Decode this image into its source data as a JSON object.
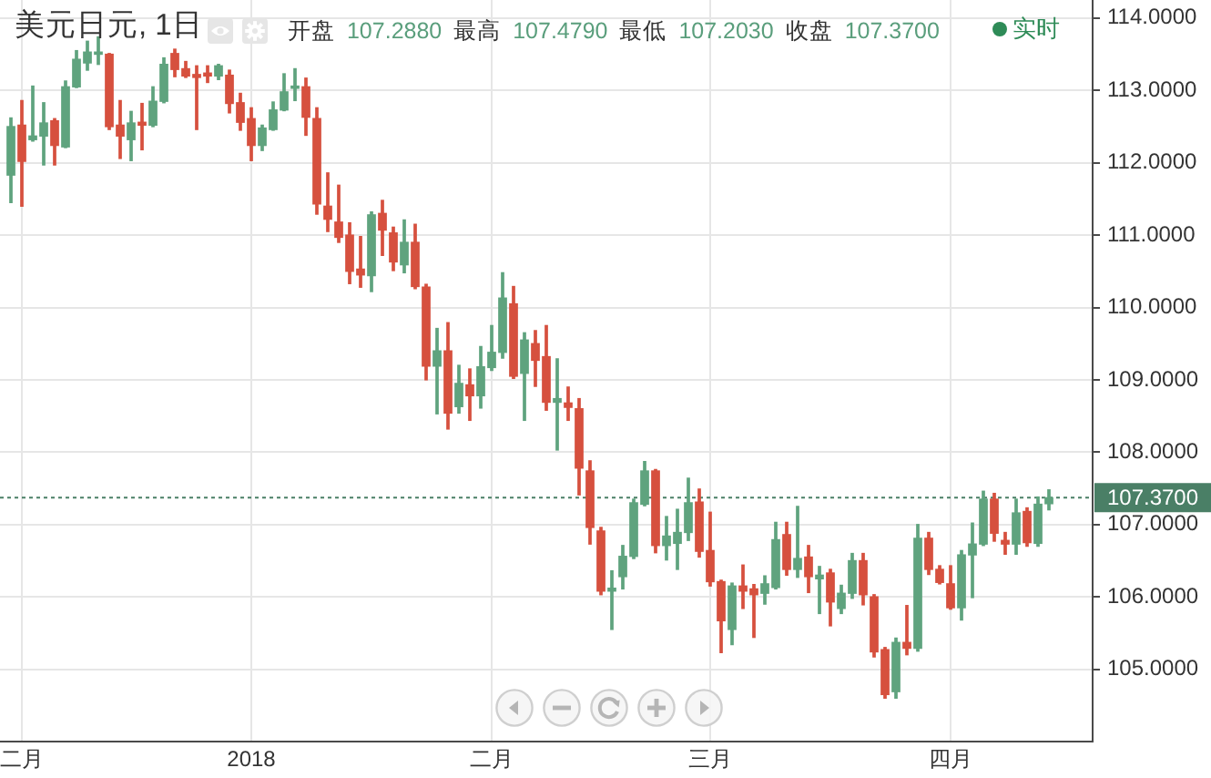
{
  "chart_data": {
    "type": "candlestick",
    "title": "美元日元, 1日",
    "subtitle": "开盘 107.2880 最高 107.4790 最低 107.2030 收盘 107.3700",
    "annotations": [
      "实时"
    ],
    "categories": [
      null,
      "二月",
      null,
      null,
      null,
      null,
      null,
      null,
      null,
      null,
      null,
      null,
      null,
      null,
      null,
      null,
      null,
      null,
      null,
      null,
      null,
      null,
      "2018",
      null,
      null,
      null,
      null,
      null,
      null,
      null,
      null,
      null,
      null,
      null,
      null,
      null,
      null,
      null,
      null,
      null,
      null,
      null,
      null,
      null,
      "二月",
      null,
      null,
      null,
      null,
      null,
      null,
      null,
      null,
      null,
      null,
      null,
      null,
      null,
      null,
      null,
      null,
      null,
      null,
      null,
      "三月",
      null,
      null,
      null,
      null,
      null,
      null,
      null,
      null,
      null,
      null,
      null,
      null,
      null,
      null,
      null,
      null,
      null,
      null,
      null,
      null,
      null,
      "四月",
      null,
      null,
      null,
      null,
      null,
      null,
      null,
      null,
      null
    ],
    "ohlc": [
      [
        111.83,
        112.62,
        111.45,
        112.5
      ],
      [
        112.52,
        112.86,
        111.4,
        112.02
      ],
      [
        112.32,
        113.06,
        112.3,
        112.37
      ],
      [
        112.37,
        112.83,
        111.97,
        112.55
      ],
      [
        112.58,
        112.61,
        111.97,
        112.24
      ],
      [
        112.22,
        113.13,
        112.21,
        113.05
      ],
      [
        113.05,
        113.55,
        113.04,
        113.43
      ],
      [
        113.38,
        113.68,
        113.28,
        113.53
      ],
      [
        113.5,
        113.74,
        113.36,
        113.53
      ],
      [
        113.5,
        113.51,
        112.46,
        112.5
      ],
      [
        112.52,
        112.86,
        112.06,
        112.37
      ],
      [
        112.32,
        112.71,
        112.03,
        112.55
      ],
      [
        112.56,
        112.82,
        112.18,
        112.52
      ],
      [
        112.52,
        113.05,
        112.5,
        112.85
      ],
      [
        112.85,
        113.45,
        112.83,
        113.36
      ],
      [
        113.51,
        113.57,
        113.19,
        113.29
      ],
      [
        113.3,
        113.4,
        113.18,
        113.2
      ],
      [
        113.22,
        113.34,
        112.46,
        113.18
      ],
      [
        113.24,
        113.34,
        113.11,
        113.2
      ],
      [
        113.2,
        113.36,
        113.15,
        113.34
      ],
      [
        113.21,
        113.28,
        112.69,
        112.82
      ],
      [
        112.83,
        112.96,
        112.45,
        112.56
      ],
      [
        112.61,
        112.76,
        112.03,
        112.24
      ],
      [
        112.24,
        112.52,
        112.17,
        112.48
      ],
      [
        112.46,
        112.84,
        112.45,
        112.73
      ],
      [
        112.73,
        113.23,
        112.72,
        112.98
      ],
      [
        113.03,
        113.3,
        112.86,
        113.06
      ],
      [
        113.05,
        113.17,
        112.38,
        112.63
      ],
      [
        112.61,
        112.76,
        111.29,
        111.43
      ],
      [
        111.4,
        111.86,
        111.05,
        111.22
      ],
      [
        111.18,
        111.69,
        110.9,
        110.97
      ],
      [
        111.0,
        111.17,
        110.33,
        110.5
      ],
      [
        110.53,
        110.98,
        110.28,
        110.45
      ],
      [
        110.44,
        111.32,
        110.22,
        111.28
      ],
      [
        111.3,
        111.48,
        110.72,
        111.07
      ],
      [
        111.03,
        111.11,
        110.51,
        110.63
      ],
      [
        110.59,
        111.21,
        110.48,
        110.9
      ],
      [
        110.9,
        111.15,
        110.26,
        110.29
      ],
      [
        110.28,
        110.32,
        109.0,
        109.19
      ],
      [
        109.19,
        109.71,
        108.53,
        109.4
      ],
      [
        109.4,
        109.79,
        108.32,
        108.54
      ],
      [
        108.63,
        109.2,
        108.54,
        108.95
      ],
      [
        108.93,
        109.15,
        108.44,
        108.78
      ],
      [
        108.78,
        109.46,
        108.61,
        109.18
      ],
      [
        109.17,
        109.75,
        109.13,
        109.38
      ],
      [
        109.38,
        110.48,
        109.3,
        110.13
      ],
      [
        110.05,
        110.29,
        109.02,
        109.05
      ],
      [
        109.09,
        109.65,
        108.44,
        109.55
      ],
      [
        109.5,
        109.68,
        108.91,
        109.27
      ],
      [
        109.32,
        109.75,
        108.58,
        108.69
      ],
      [
        108.69,
        109.29,
        108.03,
        108.74
      ],
      [
        108.68,
        108.9,
        108.44,
        108.62
      ],
      [
        108.6,
        108.74,
        107.41,
        107.78
      ],
      [
        107.74,
        107.88,
        106.73,
        106.96
      ],
      [
        106.91,
        106.96,
        106.03,
        106.08
      ],
      [
        106.08,
        106.36,
        105.55,
        106.12
      ],
      [
        106.28,
        106.71,
        106.11,
        106.56
      ],
      [
        106.56,
        107.35,
        106.53,
        107.3
      ],
      [
        107.28,
        107.87,
        107.26,
        107.74
      ],
      [
        107.74,
        107.76,
        106.61,
        106.71
      ],
      [
        106.71,
        107.11,
        106.51,
        106.84
      ],
      [
        106.74,
        107.21,
        106.38,
        106.89
      ],
      [
        106.89,
        107.64,
        106.78,
        107.3
      ],
      [
        107.31,
        107.49,
        106.55,
        106.63
      ],
      [
        106.64,
        107.17,
        106.15,
        106.21
      ],
      [
        106.21,
        106.23,
        105.23,
        105.67
      ],
      [
        105.55,
        106.19,
        105.34,
        106.15
      ],
      [
        106.15,
        106.44,
        105.84,
        106.08
      ],
      [
        106.11,
        106.17,
        105.44,
        106.03
      ],
      [
        106.05,
        106.29,
        105.9,
        106.18
      ],
      [
        106.13,
        107.03,
        106.11,
        106.79
      ],
      [
        106.86,
        107.03,
        106.3,
        106.38
      ],
      [
        106.38,
        107.25,
        106.27,
        106.53
      ],
      [
        106.55,
        106.71,
        106.06,
        106.28
      ],
      [
        106.25,
        106.42,
        105.77,
        106.3
      ],
      [
        106.33,
        106.38,
        105.6,
        105.93
      ],
      [
        105.84,
        106.16,
        105.77,
        106.05
      ],
      [
        106.05,
        106.6,
        105.98,
        106.5
      ],
      [
        106.5,
        106.6,
        105.89,
        106.03
      ],
      [
        106.0,
        106.03,
        105.17,
        105.24
      ],
      [
        105.27,
        105.3,
        104.6,
        104.65
      ],
      [
        104.69,
        105.43,
        104.6,
        105.37
      ],
      [
        105.37,
        105.88,
        105.2,
        105.29
      ],
      [
        105.29,
        107.0,
        105.25,
        106.81
      ],
      [
        106.81,
        106.89,
        106.31,
        106.38
      ],
      [
        106.38,
        106.43,
        106.18,
        106.2
      ],
      [
        106.18,
        106.43,
        105.83,
        105.85
      ],
      [
        105.85,
        106.64,
        105.68,
        106.58
      ],
      [
        106.58,
        107.02,
        105.99,
        106.73
      ],
      [
        106.73,
        107.46,
        106.71,
        107.35
      ],
      [
        107.35,
        107.43,
        106.77,
        106.88
      ],
      [
        106.78,
        106.89,
        106.59,
        106.73
      ],
      [
        106.73,
        107.35,
        106.59,
        107.16
      ],
      [
        107.18,
        107.23,
        106.7,
        106.75
      ],
      [
        106.74,
        107.38,
        106.7,
        107.28
      ],
      [
        107.288,
        107.479,
        107.203,
        107.37
      ]
    ],
    "colors": [
      "#5fa37e",
      "#d6503e",
      "#5fa37e",
      "#5fa37e",
      "#d6503e",
      "#5fa37e",
      "#5fa37e",
      "#5fa37e",
      "#5fa37e",
      "#d6503e",
      "#d6503e",
      "#5fa37e",
      "#d6503e",
      "#5fa37e",
      "#5fa37e",
      "#d6503e",
      "#d6503e",
      "#d6503e",
      "#d6503e",
      "#5fa37e",
      "#d6503e",
      "#d6503e",
      "#d6503e",
      "#5fa37e",
      "#5fa37e",
      "#5fa37e",
      "#5fa37e",
      "#d6503e",
      "#d6503e",
      "#d6503e",
      "#d6503e",
      "#d6503e",
      "#d6503e",
      "#5fa37e",
      "#d6503e",
      "#d6503e",
      "#5fa37e",
      "#d6503e",
      "#d6503e",
      "#5fa37e",
      "#d6503e",
      "#5fa37e",
      "#d6503e",
      "#5fa37e",
      "#5fa37e",
      "#5fa37e",
      "#d6503e",
      "#5fa37e",
      "#d6503e",
      "#d6503e",
      "#5fa37e",
      "#d6503e",
      "#d6503e",
      "#d6503e",
      "#d6503e",
      "#5fa37e",
      "#5fa37e",
      "#5fa37e",
      "#5fa37e",
      "#d6503e",
      "#5fa37e",
      "#5fa37e",
      "#5fa37e",
      "#d6503e",
      "#d6503e",
      "#d6503e",
      "#5fa37e",
      "#d6503e",
      "#d6503e",
      "#5fa37e",
      "#5fa37e",
      "#d6503e",
      "#5fa37e",
      "#d6503e",
      "#5fa37e",
      "#d6503e",
      "#5fa37e",
      "#5fa37e",
      "#d6503e",
      "#d6503e",
      "#d6503e",
      "#5fa37e",
      "#d6503e",
      "#5fa37e",
      "#d6503e",
      "#d6503e",
      "#d6503e",
      "#5fa37e",
      "#5fa37e",
      "#5fa37e",
      "#d6503e",
      "#d6503e",
      "#5fa37e",
      "#d6503e",
      "#5fa37e",
      "#5fa37e"
    ],
    "ylim": [
      104,
      114.25
    ],
    "yticks": [
      {
        "value": 105,
        "label": "105.0000"
      },
      {
        "value": 106,
        "label": "106.0000"
      },
      {
        "value": 107,
        "label": "107.0000"
      },
      {
        "value": 108,
        "label": "108.0000"
      },
      {
        "value": 109,
        "label": "109.0000"
      },
      {
        "value": 110,
        "label": "110.0000"
      },
      {
        "value": 111,
        "label": "111.0000"
      },
      {
        "value": 112,
        "label": "112.0000"
      },
      {
        "value": 113,
        "label": "113.0000"
      },
      {
        "value": 114,
        "label": "114.0000"
      }
    ],
    "ref_lines": [
      {
        "axis": "y",
        "value": 107.37,
        "label": "107.3700",
        "color": "#4a7f66",
        "line_style": "dotted"
      }
    ],
    "grid": true
  }
}
